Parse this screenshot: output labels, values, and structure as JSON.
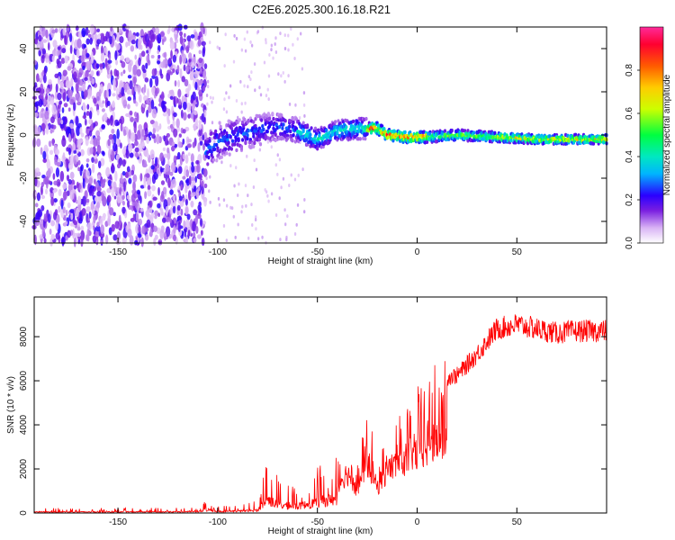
{
  "figure_title": "C2E6.2025.300.16.18.R21",
  "chart_data": [
    {
      "type": "heatmap",
      "xlabel": "Height of straight line (km)",
      "ylabel": "Frequency (Hz)",
      "xlim": [
        -192,
        95
      ],
      "ylim": [
        -50,
        50
      ],
      "xticks": [
        -150,
        -100,
        -50,
        0,
        50
      ],
      "yticks": [
        -40,
        -20,
        0,
        20,
        40
      ],
      "colorbar": {
        "label": "Normalized spectral amplitude",
        "range": [
          0,
          1
        ],
        "ticks": [
          0.0,
          0.2,
          0.4,
          0.6,
          0.8
        ]
      },
      "ridge_frequency_hz": [
        [
          -106,
          -8
        ],
        [
          -100,
          -3
        ],
        [
          -90,
          0
        ],
        [
          -80,
          2
        ],
        [
          -70,
          4
        ],
        [
          -60,
          2
        ],
        [
          -50,
          -2
        ],
        [
          -40,
          2
        ],
        [
          -30,
          3
        ],
        [
          -20,
          3
        ],
        [
          -15,
          0
        ],
        [
          -5,
          -1
        ],
        [
          5,
          -1
        ],
        [
          20,
          0
        ],
        [
          40,
          -1
        ],
        [
          60,
          -2
        ],
        [
          80,
          -2
        ],
        [
          95,
          -2
        ]
      ],
      "note": "scattered low-amplitude noise below -105 km; coherent ridge near 0 Hz above -105 km with highest amplitude from -20 km to 0 km"
    },
    {
      "type": "line",
      "xlabel": "Height of straight line (km)",
      "ylabel": "SNR (10 * v/v)",
      "xlim": [
        -192,
        95
      ],
      "ylim": [
        0,
        9800
      ],
      "xticks": [
        -150,
        -100,
        -50,
        0,
        50
      ],
      "yticks": [
        0,
        2000,
        4000,
        6000,
        8000
      ],
      "series": [
        {
          "name": "SNR",
          "color": "#ff0000",
          "envelope": [
            [
              -192,
              200
            ],
            [
              -150,
              200
            ],
            [
              -110,
              220
            ],
            [
              -105,
              600
            ],
            [
              -100,
              300
            ],
            [
              -90,
              350
            ],
            [
              -80,
              500
            ],
            [
              -75,
              2500
            ],
            [
              -70,
              1500
            ],
            [
              -60,
              1200
            ],
            [
              -50,
              2000
            ],
            [
              -40,
              2500
            ],
            [
              -35,
              3500
            ],
            [
              -30,
              2000
            ],
            [
              -25,
              4500
            ],
            [
              -20,
              2200
            ],
            [
              -15,
              3700
            ],
            [
              -10,
              4300
            ],
            [
              -5,
              4800
            ],
            [
              0,
              5200
            ],
            [
              5,
              5700
            ],
            [
              10,
              6300
            ],
            [
              20,
              6500
            ],
            [
              30,
              7500
            ],
            [
              40,
              8700
            ],
            [
              50,
              8900
            ],
            [
              60,
              8700
            ],
            [
              70,
              8500
            ],
            [
              80,
              8600
            ],
            [
              95,
              8600
            ]
          ]
        }
      ]
    }
  ]
}
